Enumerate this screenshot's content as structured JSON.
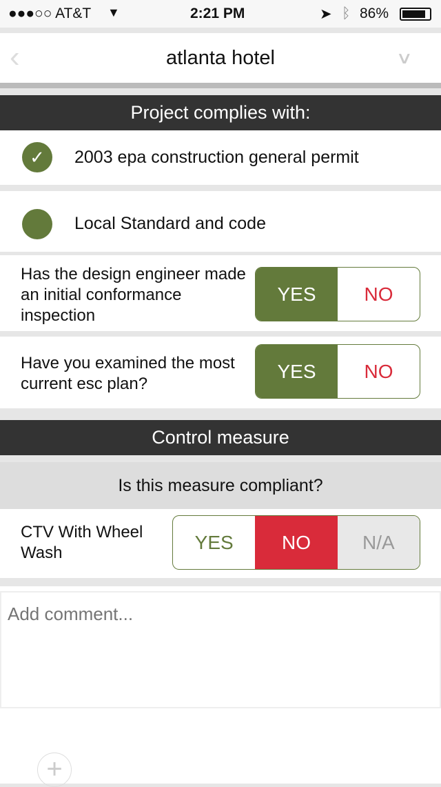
{
  "status": {
    "carrier": "●●●○○ AT&T",
    "time": "2:21 PM",
    "battery": "86%"
  },
  "header": {
    "title": "atlanta hotel"
  },
  "complies": {
    "title": "Project complies with:",
    "items": [
      {
        "label": "2003 epa construction general permit",
        "checked": true
      },
      {
        "label": "Local Standard and code",
        "checked": false
      }
    ]
  },
  "questions": [
    {
      "text": "Has the design engineer made an initial conformance inspection",
      "yes": "YES",
      "no": "NO",
      "selected": "YES"
    },
    {
      "text": "Have you examined the most current esc plan?",
      "yes": "YES",
      "no": "NO",
      "selected": "YES"
    }
  ],
  "control": {
    "title": "Control measure",
    "subtitle": "Is this measure compliant?",
    "item": "CTV With Wheel Wash",
    "yes": "YES",
    "no": "NO",
    "na": "N/A",
    "selected": "NO"
  },
  "comment": {
    "placeholder": "Add comment..."
  },
  "colors": {
    "green": "#637a3b",
    "red": "#d92b3a",
    "dark": "#333333"
  }
}
